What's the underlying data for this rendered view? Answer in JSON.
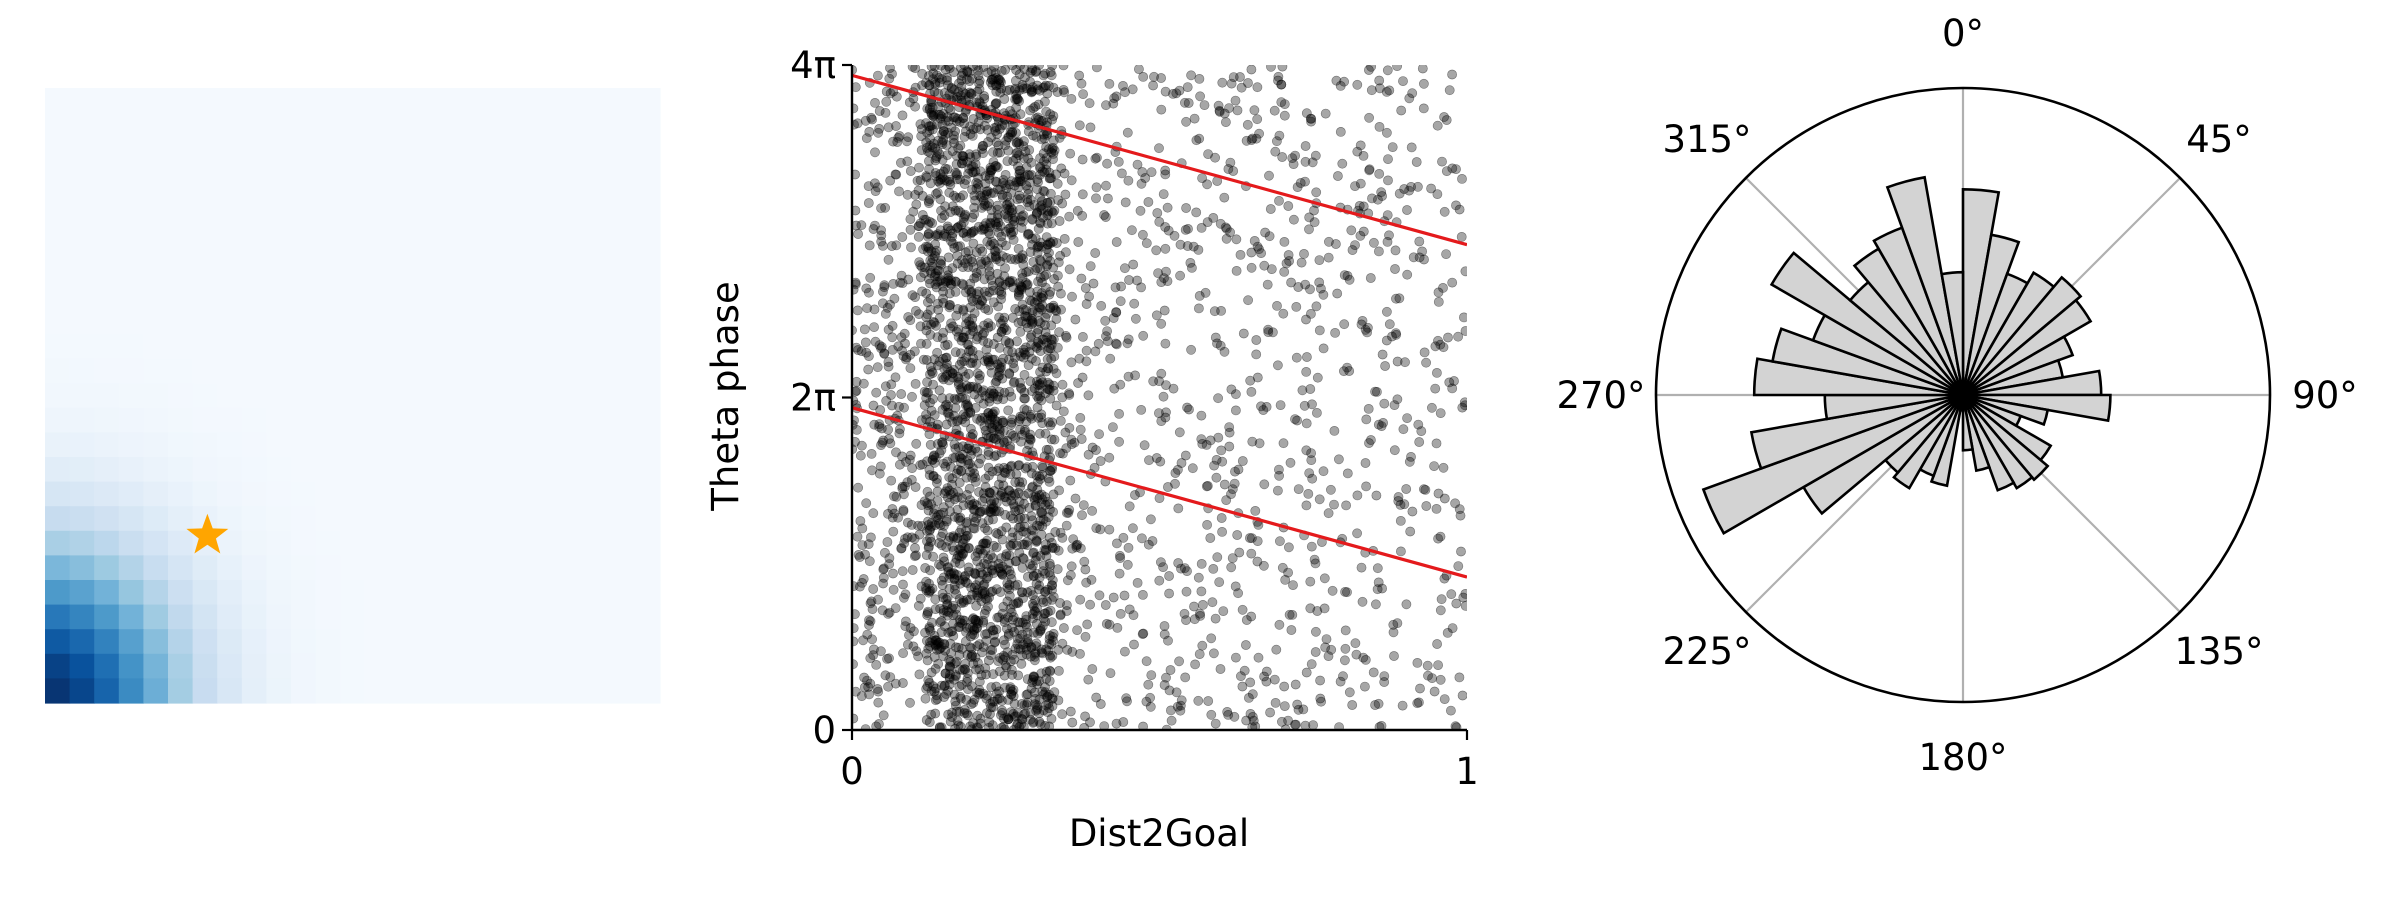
{
  "chart_data": [
    {
      "type": "heatmap",
      "colormap": "Blues",
      "grid": false,
      "rows": 25,
      "cols": 25,
      "axes_visible": false,
      "hot_corner": "bottom-left",
      "marker": {
        "shape": "star",
        "color": "#ffa500",
        "cell_col": 6.6,
        "cell_row": 18.2
      }
    },
    {
      "type": "scatter",
      "xlabel": "Dist2Goal",
      "ylabel": "Theta phase",
      "xlim": [
        0,
        1
      ],
      "ylim": [
        0,
        12.566
      ],
      "xticks": [
        {
          "value": 0,
          "label": "0"
        },
        {
          "value": 1,
          "label": "1"
        }
      ],
      "yticks": [
        {
          "value": 0,
          "label": "0"
        },
        {
          "value": 6.283,
          "label": "2π"
        },
        {
          "value": 12.566,
          "label": "4π"
        }
      ],
      "point_color": "#000000",
      "point_alpha": 0.35,
      "points_note_dense_band": [
        0.12,
        0.33
      ],
      "fit_lines": [
        {
          "color": "#e41a1c",
          "x": [
            0,
            1
          ],
          "y": [
            12.37,
            9.17
          ]
        },
        {
          "color": "#e41a1c",
          "x": [
            0,
            1
          ],
          "y": [
            6.09,
            2.89
          ]
        }
      ]
    },
    {
      "type": "polar-bar",
      "theta_direction": "clockwise",
      "theta_zero": "top",
      "bar_color": "#d3d3d3",
      "edge_color": "#000000",
      "angle_labels": [
        "0°",
        "45°",
        "90°",
        "135°",
        "180°",
        "225°",
        "270°",
        "315°"
      ],
      "bins": 36,
      "values": [
        0.67,
        0.53,
        0.42,
        0.46,
        0.5,
        0.48,
        0.38,
        0.33,
        0.45,
        0.48,
        0.28,
        0.2,
        0.33,
        0.36,
        0.35,
        0.33,
        0.25,
        0.18,
        0.05,
        0.3,
        0.28,
        0.35,
        0.33,
        0.6,
        0.9,
        0.7,
        0.45,
        0.68,
        0.63,
        0.52,
        0.72,
        0.48,
        0.55,
        0.58,
        0.72,
        0.4
      ]
    }
  ]
}
